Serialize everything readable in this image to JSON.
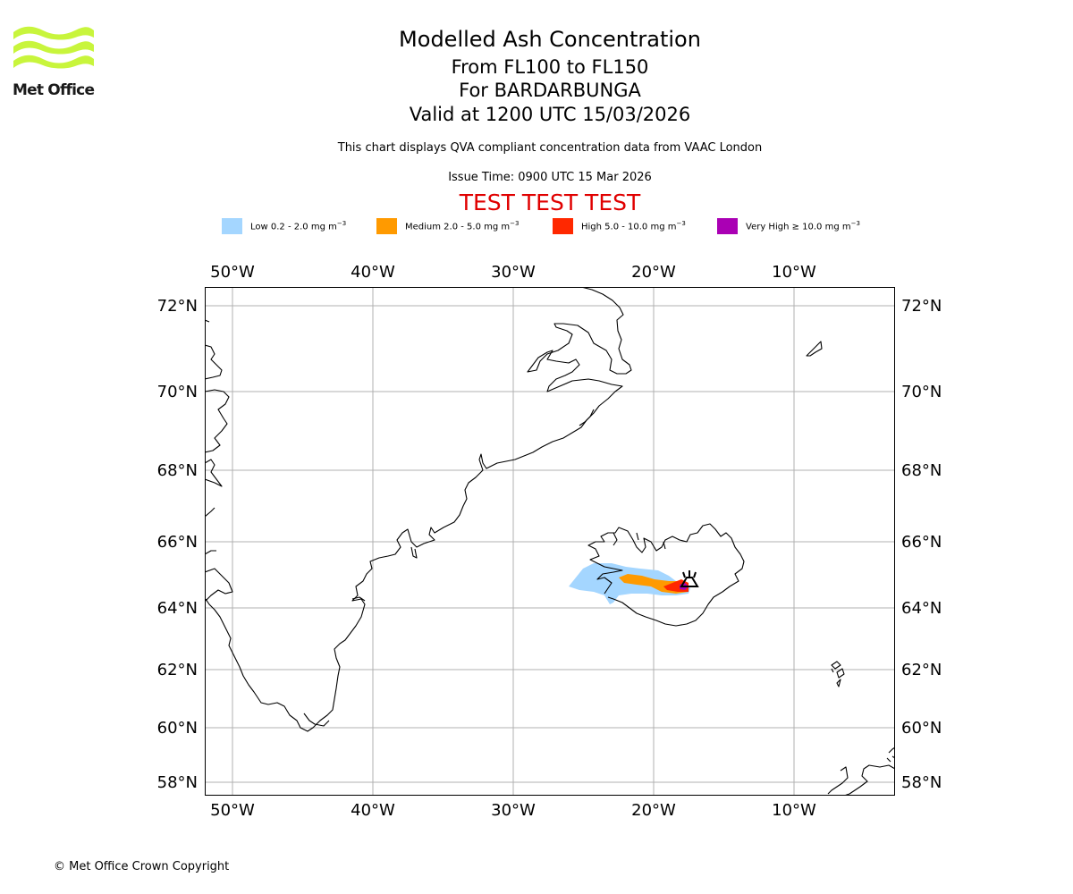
{
  "logo": {
    "text": "Met Office",
    "color": "#c8f53c"
  },
  "header": {
    "title": "Modelled Ash Concentration",
    "levels": "From FL100 to FL150",
    "volcano": "For BARDARBUNGA",
    "valid": "Valid at 1200 UTC 15/03/2026",
    "description": "This chart displays QVA compliant concentration data from VAAC London",
    "issue_time": "Issue Time: 0900 UTC 15 Mar 2026",
    "test_banner": "TEST TEST TEST"
  },
  "legend": [
    {
      "label": "Low 0.2 - 2.0 mg m",
      "exp": "−3",
      "color": "#a4d6ff"
    },
    {
      "label": "Medium 2.0 - 5.0 mg m",
      "exp": "−3",
      "color": "#ff9a00"
    },
    {
      "label": "High 5.0 - 10.0 mg m",
      "exp": "−3",
      "color": "#ff2800"
    },
    {
      "label": "Very High  ≥  10.0 mg m",
      "exp": "−3",
      "color": "#aa00b4"
    }
  ],
  "map": {
    "lon_ticks": [
      "50°W",
      "40°W",
      "30°W",
      "20°W",
      "10°W"
    ],
    "lat_ticks": [
      "72°N",
      "70°N",
      "68°N",
      "66°N",
      "64°N",
      "62°N",
      "60°N",
      "58°N"
    ],
    "grid": true,
    "volcano_marker": "volcano-icon"
  },
  "footer": {
    "copyright": "© Met Office Crown Copyright"
  }
}
